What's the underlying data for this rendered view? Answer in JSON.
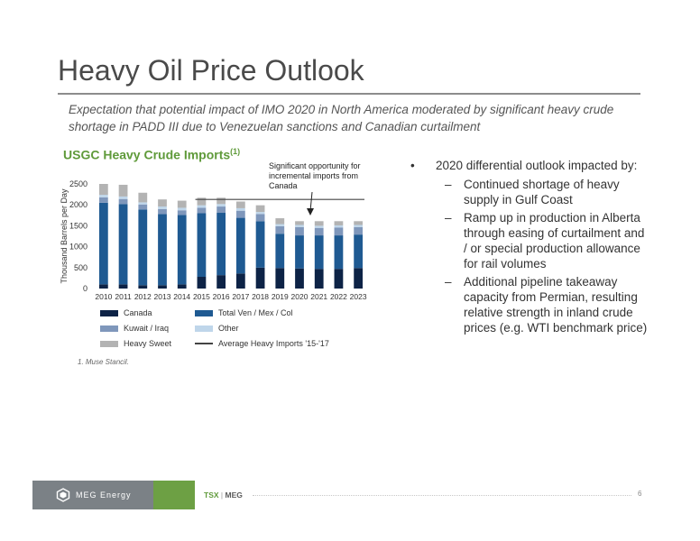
{
  "page": {
    "title": "Heavy Oil Price Outlook",
    "subtitle": "Expectation that potential impact of IMO 2020 in North America moderated by significant heavy crude shortage in PADD III due to Venezuelan sanctions and Canadian curtailment",
    "chart_heading": "USGC Heavy Crude Imports",
    "chart_heading_sup": "(1)",
    "callout": "Significant opportunity for incremental imports from Canada",
    "footnote": "1.    Muse Stancil."
  },
  "bullets": {
    "main": "2020 differential outlook impacted by:",
    "items": [
      "Continued shortage of heavy supply in Gulf Coast",
      "Ramp up in production in Alberta through easing of curtailment and / or special production allowance for rail volumes",
      "Additional pipeline takeaway capacity from Permian, resulting relative strength in inland crude prices (e.g. WTI benchmark price)"
    ]
  },
  "footer": {
    "logo_text": "MEG Energy",
    "ticker_tsx": "TSX",
    "ticker_sep": "|",
    "ticker_meg": "MEG",
    "page_number": "6"
  },
  "colors": {
    "canada": "#0d2346",
    "ven_mex_col": "#1f5a92",
    "kuwait_iraq": "#7f97bb",
    "other": "#bfd6ea",
    "heavy_sweet": "#b3b3b3",
    "avg_line": "#444444",
    "accent_green": "#5f9a3a"
  },
  "chart_data": {
    "type": "bar",
    "stacked": true,
    "ylabel": "Thousand Barrels per Day",
    "ylim": [
      0,
      2500
    ],
    "yticks": [
      0,
      500,
      1000,
      1500,
      2000,
      2500
    ],
    "categories": [
      "2010",
      "2011",
      "2012",
      "2013",
      "2014",
      "2015",
      "2016",
      "2017",
      "2018",
      "2019",
      "2020",
      "2021",
      "2022",
      "2023"
    ],
    "series": [
      {
        "name": "Canada",
        "values": [
          100,
          100,
          80,
          80,
          100,
          280,
          320,
          360,
          500,
          490,
          480,
          470,
          470,
          490
        ]
      },
      {
        "name": "Total Ven / Mex / Col",
        "values": [
          1950,
          1920,
          1810,
          1700,
          1660,
          1520,
          1490,
          1330,
          1110,
          820,
          790,
          800,
          800,
          800
        ]
      },
      {
        "name": "Kuwait / Iraq",
        "values": [
          130,
          120,
          120,
          120,
          110,
          130,
          150,
          170,
          170,
          180,
          200,
          180,
          190,
          180
        ]
      },
      {
        "name": "Other",
        "values": [
          60,
          60,
          50,
          60,
          60,
          60,
          60,
          60,
          50,
          50,
          50,
          50,
          50,
          50
        ]
      },
      {
        "name": "Heavy Sweet",
        "values": [
          260,
          280,
          230,
          170,
          170,
          180,
          150,
          160,
          160,
          140,
          90,
          110,
          100,
          90
        ]
      }
    ],
    "reference_line": {
      "name": "Average Heavy Imports '15-'17",
      "value": 2130,
      "x_range": [
        "2015",
        "2023"
      ]
    },
    "legend": [
      {
        "label": "Canada",
        "kind": "swatch",
        "color": "#0d2346"
      },
      {
        "label": "Total Ven / Mex / Col",
        "kind": "swatch",
        "color": "#1f5a92"
      },
      {
        "label": "Kuwait / Iraq",
        "kind": "swatch",
        "color": "#7f97bb"
      },
      {
        "label": "Other",
        "kind": "swatch",
        "color": "#bfd6ea"
      },
      {
        "label": "Heavy Sweet",
        "kind": "swatch",
        "color": "#b3b3b3"
      },
      {
        "label": "Average Heavy Imports '15-'17",
        "kind": "line",
        "color": "#444444"
      }
    ],
    "legend_position": "bottom"
  }
}
